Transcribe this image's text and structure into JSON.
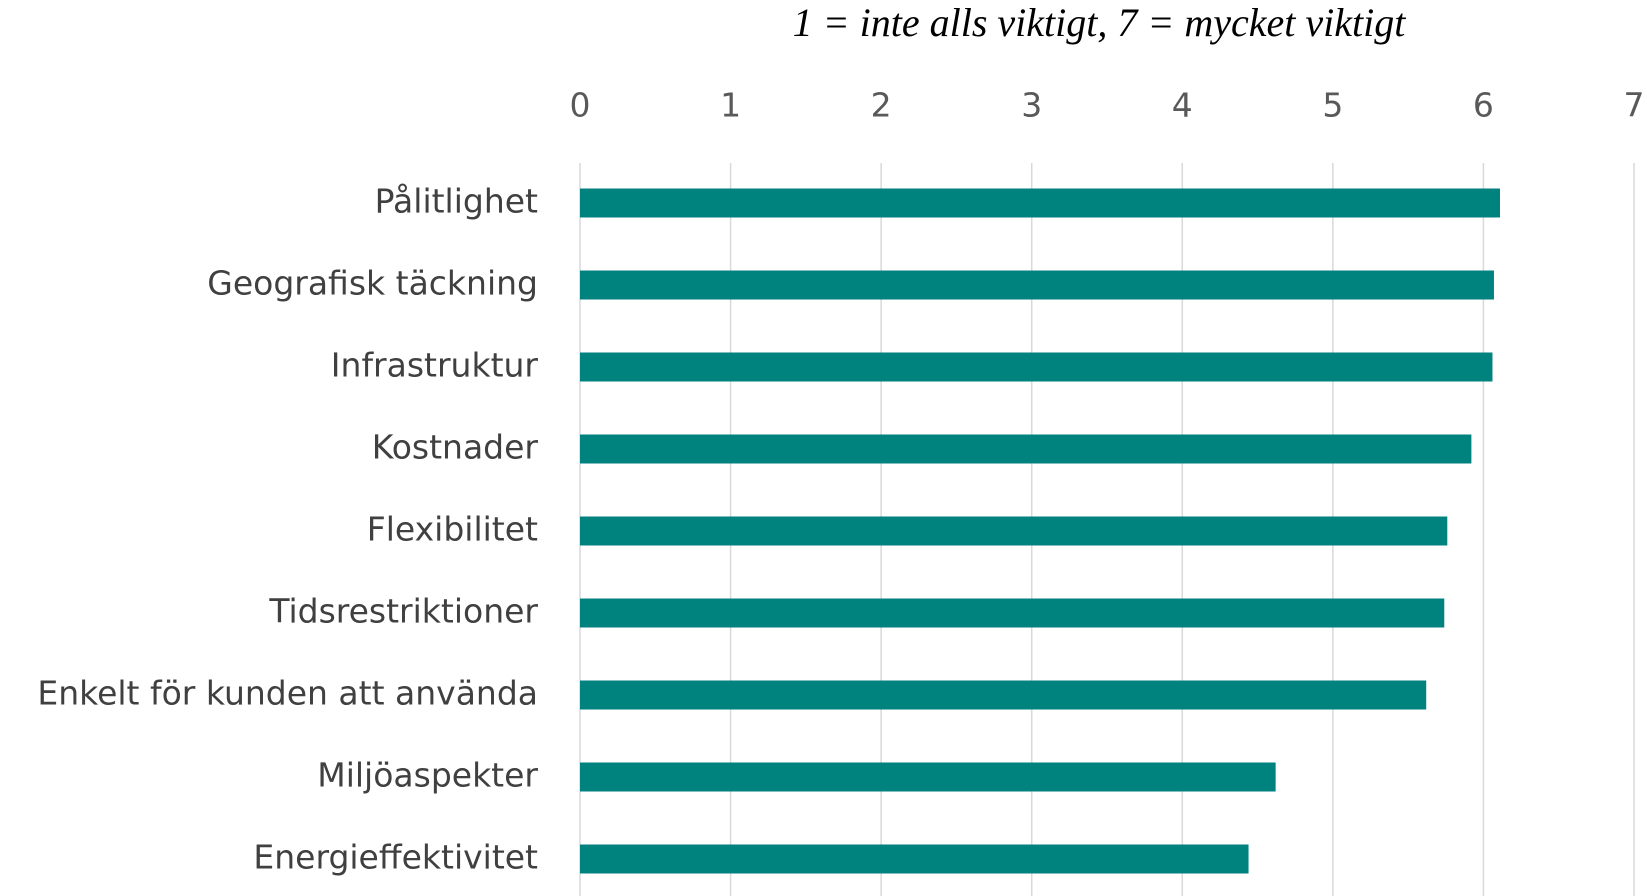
{
  "chart_data": {
    "type": "bar",
    "orientation": "horizontal",
    "xlabel": "1 = inte alls viktigt, 7 = mycket viktigt",
    "categories": [
      "Pålitlighet",
      "Geografisk täckning",
      "Infrastruktur",
      "Kostnader",
      "Flexibilitet",
      "Tidsrestriktioner",
      "Enkelt för kunden att använda",
      "Miljöaspekter",
      "Energieffektivitet"
    ],
    "values": [
      6.11,
      6.07,
      6.06,
      5.92,
      5.76,
      5.74,
      5.62,
      4.62,
      4.44
    ],
    "color": "#00827f",
    "xlim": [
      0,
      7
    ],
    "xticks": [
      0,
      1,
      2,
      3,
      4,
      5,
      6,
      7
    ],
    "grid": true
  }
}
